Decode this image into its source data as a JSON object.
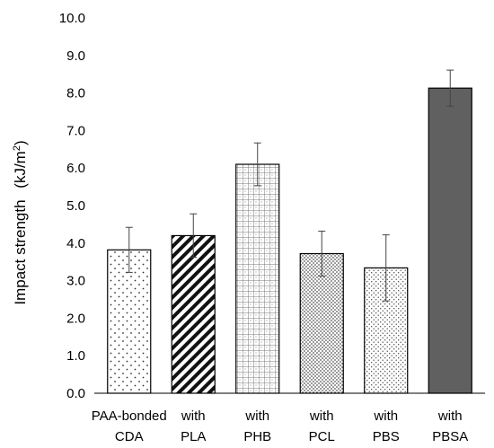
{
  "chart_data": {
    "type": "bar",
    "ylabel": "Impact strength",
    "ylabel_unit": "(kJ/m",
    "ylabel_unit_sup": "2",
    "ylabel_unit_close": ")",
    "ylim": [
      0,
      10
    ],
    "ytick_labels": [
      "0.0",
      "1.0",
      "2.0",
      "3.0",
      "4.0",
      "5.0",
      "6.0",
      "7.0",
      "8.0",
      "9.0",
      "10.0"
    ],
    "categories": [
      {
        "line1": "PAA-bonded",
        "line2": "CDA"
      },
      {
        "line1": "with",
        "line2": "PLA"
      },
      {
        "line1": "with",
        "line2": "PHB"
      },
      {
        "line1": "with",
        "line2": "PCL"
      },
      {
        "line1": "with",
        "line2": "PBS"
      },
      {
        "line1": "with",
        "line2": "PBSA"
      }
    ],
    "values": [
      3.82,
      4.2,
      6.1,
      3.72,
      3.34,
      8.13
    ],
    "errors": [
      0.6,
      0.58,
      0.57,
      0.6,
      0.88,
      0.48
    ],
    "patterns": [
      "dots",
      "diagonal",
      "grid",
      "dense-dots",
      "fine-dots",
      "solid"
    ],
    "grid": false,
    "colors": {
      "solid_bar": "#606060",
      "outline": "#000000"
    }
  }
}
